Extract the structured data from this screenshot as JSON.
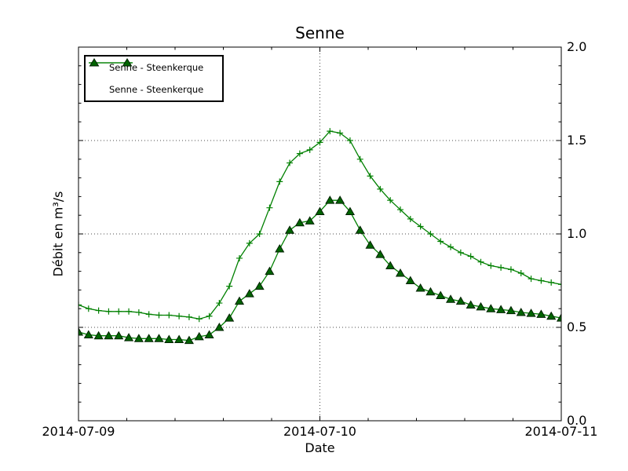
{
  "figure": {
    "title": "Senne",
    "xlabel": "Date",
    "ylabel": "Débit en m³/s"
  },
  "legend": {
    "position": "upper-left",
    "items": [
      {
        "label": "Senne - Steenkerque",
        "marker": "plus"
      },
      {
        "label": "Senne - Steenkerque",
        "marker": "triangle"
      }
    ]
  },
  "colors": {
    "line_green": "#008000",
    "triangle_fill": "#006400",
    "triangle_edge": "#002000",
    "axis": "#000000",
    "grid": "#000000",
    "background": "#ffffff"
  },
  "chart_data": {
    "type": "line",
    "title": "Senne",
    "xlabel": "Date",
    "ylabel": "Débit en m³/s",
    "x_unit": "hours since 2014-07-09 00:00",
    "xlim_hours": [
      0,
      48
    ],
    "ylim": [
      0.0,
      2.0
    ],
    "x_tick_labels": [
      "2014-07-09",
      "2014-07-10",
      "2014-07-11"
    ],
    "x_major_tick_hours": [
      0,
      24,
      48
    ],
    "x_minor_tick_step_hours": 4.8,
    "y_ticks": [
      0.0,
      0.5,
      1.0,
      1.5,
      2.0
    ],
    "y_minor_tick_step": 0.1,
    "y_tick_side": "right",
    "grid": {
      "style": "dotted",
      "horizontal_at": [
        0.5,
        1.0,
        1.5
      ],
      "vertical_at_hours": [
        24
      ]
    },
    "legend_position": "upper left",
    "series": [
      {
        "name": "Senne - Steenkerque",
        "marker": "plus",
        "color": "#008000",
        "values": [
          0.62,
          0.6,
          0.59,
          0.585,
          0.585,
          0.585,
          0.58,
          0.57,
          0.565,
          0.565,
          0.56,
          0.555,
          0.545,
          0.56,
          0.63,
          0.72,
          0.87,
          0.95,
          1.0,
          1.14,
          1.28,
          1.38,
          1.43,
          1.45,
          1.49,
          1.55,
          1.54,
          1.5,
          1.4,
          1.31,
          1.24,
          1.18,
          1.13,
          1.08,
          1.04,
          1.0,
          0.96,
          0.93,
          0.9,
          0.88,
          0.85,
          0.83,
          0.82,
          0.81,
          0.79,
          0.76,
          0.75,
          0.74,
          0.73
        ]
      },
      {
        "name": "Senne - Steenkerque",
        "marker": "triangle",
        "color": "#008000",
        "marker_fill": "#006400",
        "marker_edge": "#002000",
        "values": [
          0.475,
          0.46,
          0.455,
          0.455,
          0.455,
          0.445,
          0.44,
          0.44,
          0.44,
          0.435,
          0.435,
          0.43,
          0.45,
          0.46,
          0.5,
          0.55,
          0.64,
          0.68,
          0.72,
          0.8,
          0.92,
          1.02,
          1.06,
          1.07,
          1.12,
          1.18,
          1.18,
          1.12,
          1.02,
          0.94,
          0.89,
          0.83,
          0.79,
          0.75,
          0.71,
          0.69,
          0.67,
          0.65,
          0.64,
          0.62,
          0.61,
          0.6,
          0.595,
          0.59,
          0.58,
          0.575,
          0.57,
          0.56,
          0.55
        ]
      }
    ]
  }
}
